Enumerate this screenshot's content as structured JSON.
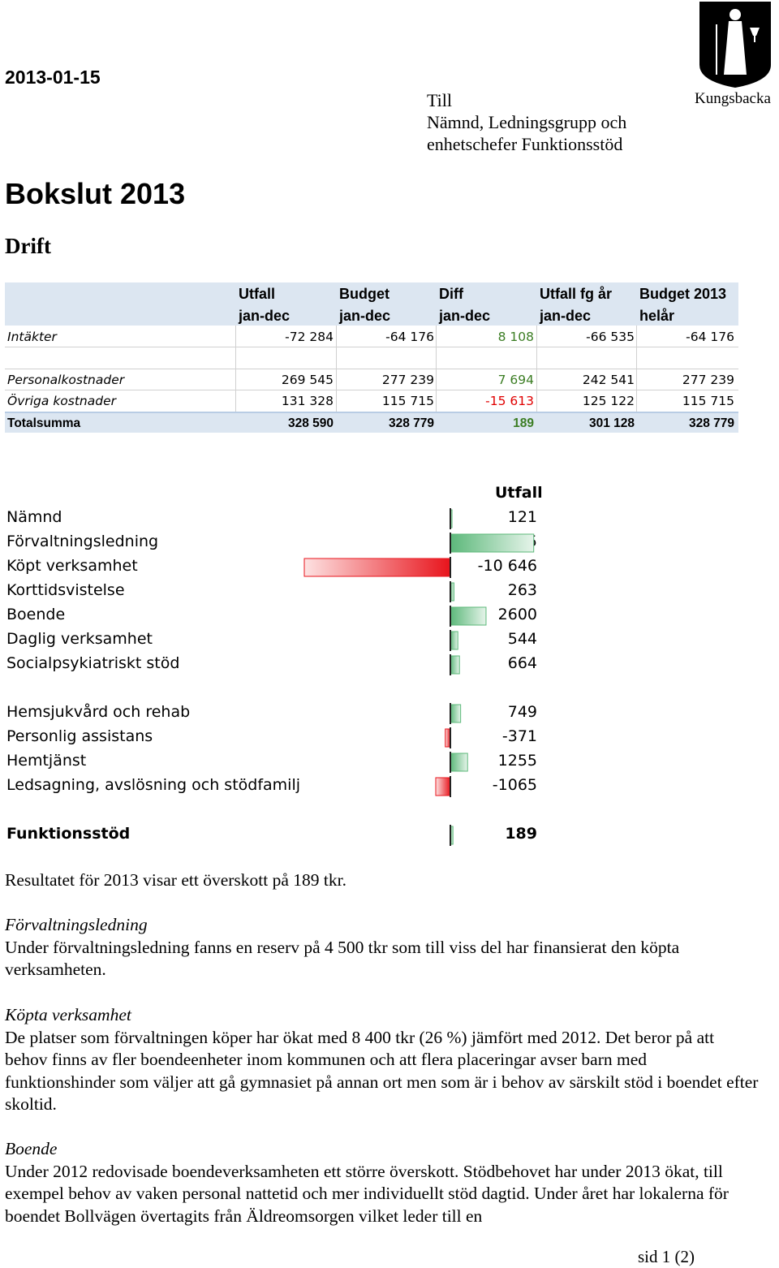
{
  "date": "2013-01-15",
  "addressee": [
    "Till",
    "Nämnd, Ledningsgrupp och",
    "enhetschefer Funktionsstöd"
  ],
  "logo": {
    "name": "Kungsbacka",
    "icon": "coat-of-arms-icon"
  },
  "title": "Bokslut 2013",
  "subtitle": "Drift",
  "table": {
    "headers": [
      [
        "Utfall",
        "jan-dec"
      ],
      [
        "Budget",
        "jan-dec"
      ],
      [
        "Diff",
        "jan-dec"
      ],
      [
        "Utfall fg år",
        "jan-dec"
      ],
      [
        "Budget 2013",
        "helår"
      ]
    ],
    "rows": [
      {
        "label": "Intäkter",
        "values": [
          "-72 284",
          "-64 176",
          "8 108",
          "-66 535",
          "-64 176"
        ],
        "diff_color": "green"
      },
      {
        "label": "",
        "values": [
          "",
          "",
          "",
          "",
          ""
        ],
        "diff_color": ""
      },
      {
        "label": "Personalkostnader",
        "values": [
          "269 545",
          "277 239",
          "7 694",
          "242 541",
          "277 239"
        ],
        "diff_color": "green"
      },
      {
        "label": "Övriga kostnader",
        "values": [
          "131 328",
          "115 715",
          "-15 613",
          "125 122",
          "115 715"
        ],
        "diff_color": "red"
      },
      {
        "label": "Totalsumma",
        "values": [
          "328 590",
          "328 779",
          "189",
          "301 128",
          "328 779"
        ],
        "diff_color": "green"
      }
    ]
  },
  "chart_data": {
    "type": "bar",
    "orientation": "horizontal",
    "title": "Utfall",
    "categories": [
      "Nämnd",
      "Förvaltningsledning",
      "Köpt verksamhet",
      "Korttidsvistelse",
      "Boende",
      "Daglig verksamhet",
      "Socialpsykiatriskt stöd",
      "",
      "Hemsjukvård och rehab",
      "Personlig assistans",
      "Hemtjänst",
      "Ledsagning, avslösning och stödfamilj",
      "",
      "Funktionsstöd"
    ],
    "labels": [
      "121",
      "6 075",
      "-10 646",
      "263",
      "2600",
      "544",
      "664",
      "",
      "749",
      "-371",
      "1255",
      "-1065",
      "",
      "189"
    ],
    "values": [
      121,
      6075,
      -10646,
      263,
      2600,
      544,
      664,
      null,
      749,
      -371,
      1255,
      -1065,
      null,
      189
    ],
    "bold": [
      false,
      false,
      false,
      false,
      false,
      false,
      false,
      false,
      false,
      false,
      false,
      false,
      false,
      true
    ],
    "positive_color": "#5cb87a",
    "negative_color": "#e8141c"
  },
  "paragraphs": [
    {
      "heading": "",
      "text": "Resultatet för 2013 visar ett överskott på 189 tkr."
    },
    {
      "heading": "Förvaltningsledning",
      "text": "Under förvaltningsledning fanns en reserv på 4 500 tkr som till viss del har finansierat den köpta verksamheten."
    },
    {
      "heading": "Köpta verksamhet",
      "text": "De platser som förvaltningen köper har ökat med 8 400 tkr (26 %) jämfört med 2012. Det beror på att behov finns av fler boendeenheter inom kommunen och att flera placeringar avser barn med funktionshinder som väljer att gå gymnasiet på annan ort men som är i behov av särskilt stöd i boendet efter skoltid."
    },
    {
      "heading": "Boende",
      "text": "Under 2012 redovisade boendeverksamheten ett större överskott. Stödbehovet har under 2013 ökat, till exempel behov av vaken personal nattetid och mer individuellt stöd dagtid. Under året har lokalerna för boendet Bollvägen övertagits från Äldreomsorgen vilket leder till en"
    }
  ],
  "page_number": "sid 1 (2)"
}
